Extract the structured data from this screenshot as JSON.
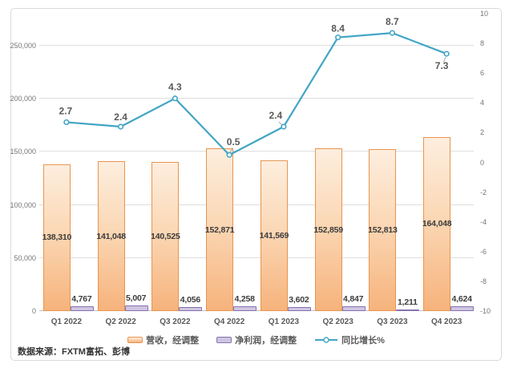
{
  "source_note": "数据来源：FXTM富拓、彭博",
  "colors": {
    "revenue_fill_top": "#fdeede",
    "revenue_fill_bottom": "#f6b37c",
    "revenue_border": "#e8954f",
    "profit_fill": "#cfc5e2",
    "profit_border": "#8573ad",
    "growth_line": "#42a5c5",
    "gridline": "#dedede",
    "axis_line": "#c2c2c2",
    "tick_text": "#757575",
    "category_text": "#595959",
    "bar_label_text": "#3b3b3b",
    "line_label_text": "#595959",
    "card_border": "#d9d9d9",
    "background": "#ffffff"
  },
  "chart_data": {
    "type": "combo-bar-line",
    "title": "",
    "categories": [
      "Q1 2022",
      "Q2 2022",
      "Q3 2022",
      "Q4 2022",
      "Q1 2023",
      "Q2 2023",
      "Q3 2023",
      "Q4 2023"
    ],
    "series": [
      {
        "name": "营收，经调整",
        "type": "bar",
        "axis": "left",
        "values": [
          138310,
          141048,
          140525,
          152871,
          141569,
          152859,
          152813,
          164048
        ],
        "labels": [
          "138,310",
          "141,048",
          "140,525",
          "152,871",
          "141,569",
          "152,859",
          "152,813",
          "164,048"
        ]
      },
      {
        "name": "净利润，经调整",
        "type": "bar",
        "axis": "left",
        "values": [
          4767,
          5007,
          4056,
          4258,
          3602,
          4847,
          1211,
          4624
        ],
        "labels": [
          "4,767",
          "5,007",
          "4,056",
          "4,258",
          "3,602",
          "4,847",
          "1,211",
          "4,624"
        ]
      },
      {
        "name": "同比增长%",
        "type": "line",
        "axis": "right",
        "values": [
          2.7,
          2.4,
          4.3,
          0.5,
          2.4,
          8.4,
          8.7,
          7.3
        ],
        "labels": [
          "2.7",
          "2.4",
          "4.3",
          "0.5",
          "2.4",
          "8.4",
          "8.7",
          "7.3"
        ]
      }
    ],
    "left_axis": {
      "min": 0,
      "max": 280000,
      "tick_step": 50000,
      "tick_labels": [
        "0",
        "50,000",
        "100,000",
        "150,000",
        "200,000",
        "250,000"
      ]
    },
    "right_axis": {
      "min": -10,
      "max": 10,
      "tick_step": 2,
      "tick_labels": [
        "-10",
        "-8",
        "-6",
        "-4",
        "-2",
        "0",
        "2",
        "4",
        "6",
        "8",
        "10"
      ]
    },
    "grid": true,
    "legend_position": "bottom"
  }
}
